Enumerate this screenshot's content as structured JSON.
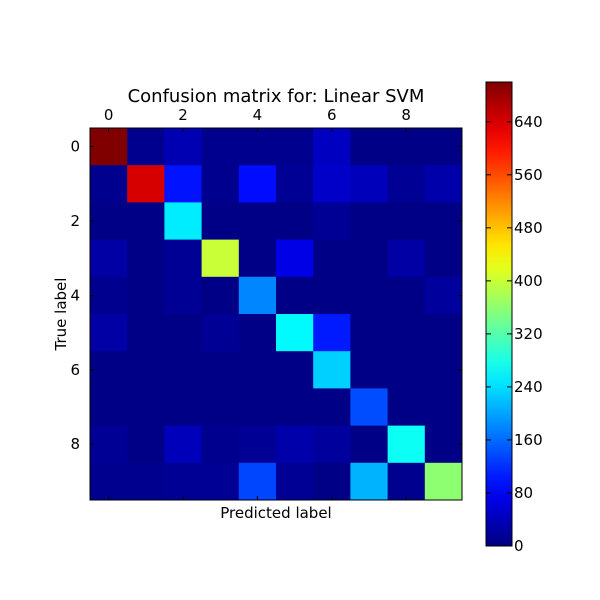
{
  "chart_data": {
    "type": "heatmap",
    "title": "Confusion matrix for: Linear SVM",
    "xlabel": "Predicted label",
    "ylabel": "True label",
    "x_ticks": [
      "0",
      "2",
      "4",
      "6",
      "8"
    ],
    "y_ticks": [
      "0",
      "2",
      "4",
      "6",
      "8"
    ],
    "x_tick_values": [
      0,
      2,
      4,
      6,
      8
    ],
    "y_tick_values": [
      0,
      2,
      4,
      6,
      8
    ],
    "rows": 10,
    "cols": 10,
    "vmin": 0,
    "vmax": 700,
    "colormap": "jet",
    "colorbar_ticks": [
      "0",
      "80",
      "160",
      "240",
      "320",
      "400",
      "480",
      "560",
      "640"
    ],
    "colorbar_tick_values": [
      0,
      80,
      160,
      240,
      320,
      400,
      480,
      560,
      640
    ],
    "values": [
      [
        700,
        10,
        35,
        10,
        10,
        10,
        45,
        5,
        5,
        5
      ],
      [
        10,
        640,
        100,
        10,
        95,
        15,
        50,
        40,
        15,
        30
      ],
      [
        5,
        5,
        250,
        5,
        5,
        5,
        15,
        5,
        5,
        5
      ],
      [
        25,
        5,
        15,
        400,
        5,
        70,
        5,
        5,
        25,
        5
      ],
      [
        10,
        5,
        15,
        5,
        180,
        5,
        5,
        5,
        5,
        20
      ],
      [
        25,
        5,
        5,
        15,
        5,
        260,
        105,
        5,
        5,
        5
      ],
      [
        5,
        5,
        5,
        5,
        5,
        5,
        230,
        5,
        5,
        5
      ],
      [
        5,
        5,
        5,
        5,
        5,
        5,
        5,
        140,
        5,
        5
      ],
      [
        15,
        5,
        40,
        10,
        15,
        30,
        20,
        5,
        270,
        5
      ],
      [
        10,
        10,
        15,
        15,
        135,
        15,
        5,
        210,
        10,
        360
      ]
    ]
  }
}
